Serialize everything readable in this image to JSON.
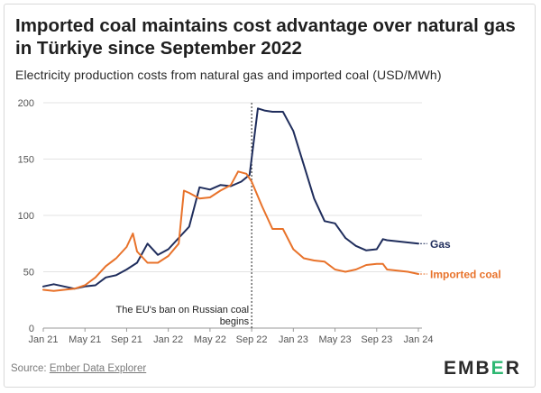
{
  "title": "Imported coal maintains cost advantage over natural gas in Türkiye since September 2022",
  "subtitle": "Electricity production costs from natural gas and imported coal (USD/MWh)",
  "source_label": "Source:",
  "source_link": "Ember Data Explorer",
  "logo": {
    "pre": "EMB",
    "accent": "E",
    "post": "R"
  },
  "colors": {
    "gas": "#1f2d5c",
    "coal": "#e8722a",
    "grid": "#e3e3e3",
    "text": "#333333"
  },
  "chart_data": {
    "type": "line",
    "title": "Imported coal maintains cost advantage over natural gas in Türkiye since September 2022",
    "ylim": [
      0,
      200
    ],
    "yticks": [
      0,
      50,
      100,
      150,
      200
    ],
    "xlim": [
      0,
      36
    ],
    "xticks": [
      {
        "label": "Jan 21",
        "x": 0
      },
      {
        "label": "May 21",
        "x": 4
      },
      {
        "label": "Sep 21",
        "x": 8
      },
      {
        "label": "Jan 22",
        "x": 12
      },
      {
        "label": "May 22",
        "x": 16
      },
      {
        "label": "Sep 22",
        "x": 20
      },
      {
        "label": "Jan 23",
        "x": 24
      },
      {
        "label": "May 23",
        "x": 28
      },
      {
        "label": "Sep 23",
        "x": 32
      },
      {
        "label": "Jan 24",
        "x": 36
      }
    ],
    "series": [
      {
        "name": "Gas",
        "label": "Gas",
        "color": "#1f2d5c",
        "points": [
          [
            0,
            37
          ],
          [
            1,
            39
          ],
          [
            2,
            37
          ],
          [
            3,
            35
          ],
          [
            4,
            37
          ],
          [
            5,
            38
          ],
          [
            6,
            45
          ],
          [
            7,
            47
          ],
          [
            8,
            52
          ],
          [
            9,
            58
          ],
          [
            10,
            75
          ],
          [
            11,
            65
          ],
          [
            12,
            70
          ],
          [
            13,
            80
          ],
          [
            14,
            90
          ],
          [
            15,
            125
          ],
          [
            16,
            123
          ],
          [
            17,
            127
          ],
          [
            18,
            126
          ],
          [
            19,
            130
          ],
          [
            19.8,
            136
          ],
          [
            20.6,
            195
          ],
          [
            21.3,
            193
          ],
          [
            22,
            192
          ],
          [
            23,
            192
          ],
          [
            24,
            175
          ],
          [
            25,
            145
          ],
          [
            26,
            115
          ],
          [
            27,
            95
          ],
          [
            28,
            93
          ],
          [
            29,
            80
          ],
          [
            30,
            73
          ],
          [
            31,
            69
          ],
          [
            32,
            70
          ],
          [
            32.6,
            79
          ],
          [
            33,
            78
          ],
          [
            34,
            77
          ],
          [
            35,
            76
          ],
          [
            36,
            75
          ]
        ]
      },
      {
        "name": "Imported coal",
        "label": "Imported coal",
        "color": "#e8722a",
        "points": [
          [
            0,
            34
          ],
          [
            1,
            33
          ],
          [
            2,
            34
          ],
          [
            3,
            35
          ],
          [
            4,
            38
          ],
          [
            5,
            45
          ],
          [
            6,
            55
          ],
          [
            7,
            62
          ],
          [
            8,
            72
          ],
          [
            8.6,
            84
          ],
          [
            9,
            68
          ],
          [
            10,
            58
          ],
          [
            11,
            58
          ],
          [
            12,
            64
          ],
          [
            13,
            75
          ],
          [
            13.5,
            122
          ],
          [
            14,
            120
          ],
          [
            15,
            115
          ],
          [
            16,
            116
          ],
          [
            17,
            122
          ],
          [
            18,
            127
          ],
          [
            18.7,
            139
          ],
          [
            19.5,
            137
          ],
          [
            20,
            130
          ],
          [
            21,
            108
          ],
          [
            22,
            88
          ],
          [
            23,
            88
          ],
          [
            24,
            70
          ],
          [
            25,
            62
          ],
          [
            26,
            60
          ],
          [
            27,
            59
          ],
          [
            28,
            52
          ],
          [
            29,
            50
          ],
          [
            30,
            52
          ],
          [
            31,
            56
          ],
          [
            32,
            57
          ],
          [
            32.6,
            57
          ],
          [
            33,
            52
          ],
          [
            34,
            51
          ],
          [
            35,
            50
          ],
          [
            36,
            48
          ]
        ]
      }
    ],
    "annotation": {
      "x": 20,
      "lines": [
        "The EU's ban on Russian coal",
        "begins"
      ]
    }
  }
}
